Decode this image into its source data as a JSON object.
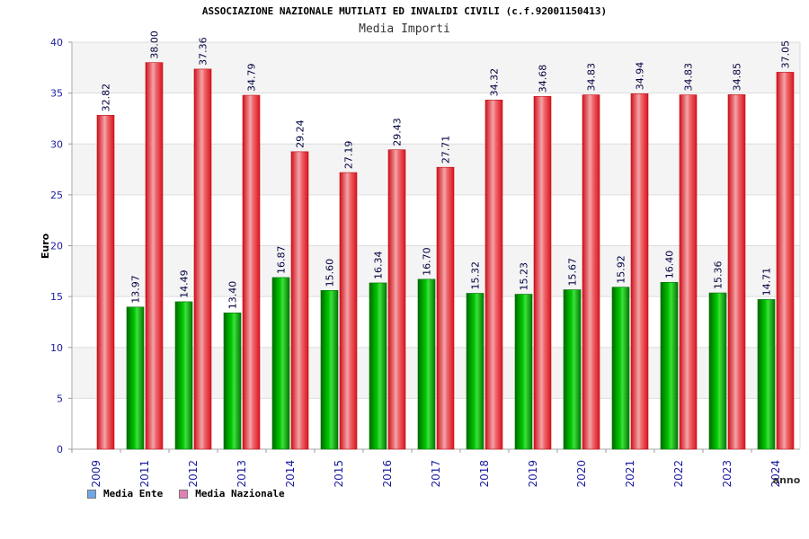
{
  "header": {
    "title": "ASSOCIAZIONE NAZIONALE MUTILATI ED INVALIDI CIVILI (c.f.92001150413)",
    "subtitle": "Media Importi"
  },
  "legend": {
    "items": [
      {
        "label": "Media Ente",
        "color": "#6fa8e8"
      },
      {
        "label": "Media Nazionale",
        "color": "#e27fb3"
      }
    ]
  },
  "chart_data": {
    "type": "bar",
    "categories": [
      "2009",
      "2011",
      "2012",
      "2013",
      "2014",
      "2015",
      "2016",
      "2017",
      "2018",
      "2019",
      "2020",
      "2021",
      "2022",
      "2023",
      "2024"
    ],
    "series": [
      {
        "name": "Media Ente",
        "color": "#00b000",
        "values": [
          null,
          13.97,
          14.49,
          13.4,
          16.87,
          15.6,
          16.34,
          16.7,
          15.32,
          15.23,
          15.67,
          15.92,
          16.4,
          15.36,
          14.71
        ],
        "labels": [
          "",
          "13.97",
          "14.49",
          "13.40",
          "16.87",
          "15.60",
          "16.34",
          "16.70",
          "15.32",
          "15.23",
          "15.67",
          "15.92",
          "16.40",
          "15.36",
          "14.71"
        ]
      },
      {
        "name": "Media Nazionale",
        "color": "#e8141e",
        "values": [
          32.82,
          38.0,
          37.36,
          34.79,
          29.24,
          27.19,
          29.43,
          27.71,
          34.32,
          34.68,
          34.83,
          34.94,
          34.83,
          34.85,
          37.05
        ],
        "labels": [
          "32.82",
          "38.00",
          "37.36",
          "34.79",
          "29.24",
          "27.19",
          "29.43",
          "27.71",
          "34.32",
          "34.68",
          "34.83",
          "34.94",
          "34.83",
          "34.85",
          "37.05"
        ]
      }
    ],
    "ylabel": "Euro",
    "xlabel": "anno",
    "ylim": [
      0,
      40
    ],
    "yticks": [
      "0",
      "5",
      "10",
      "15",
      "20",
      "25",
      "30",
      "35",
      "40"
    ],
    "grid": true
  }
}
